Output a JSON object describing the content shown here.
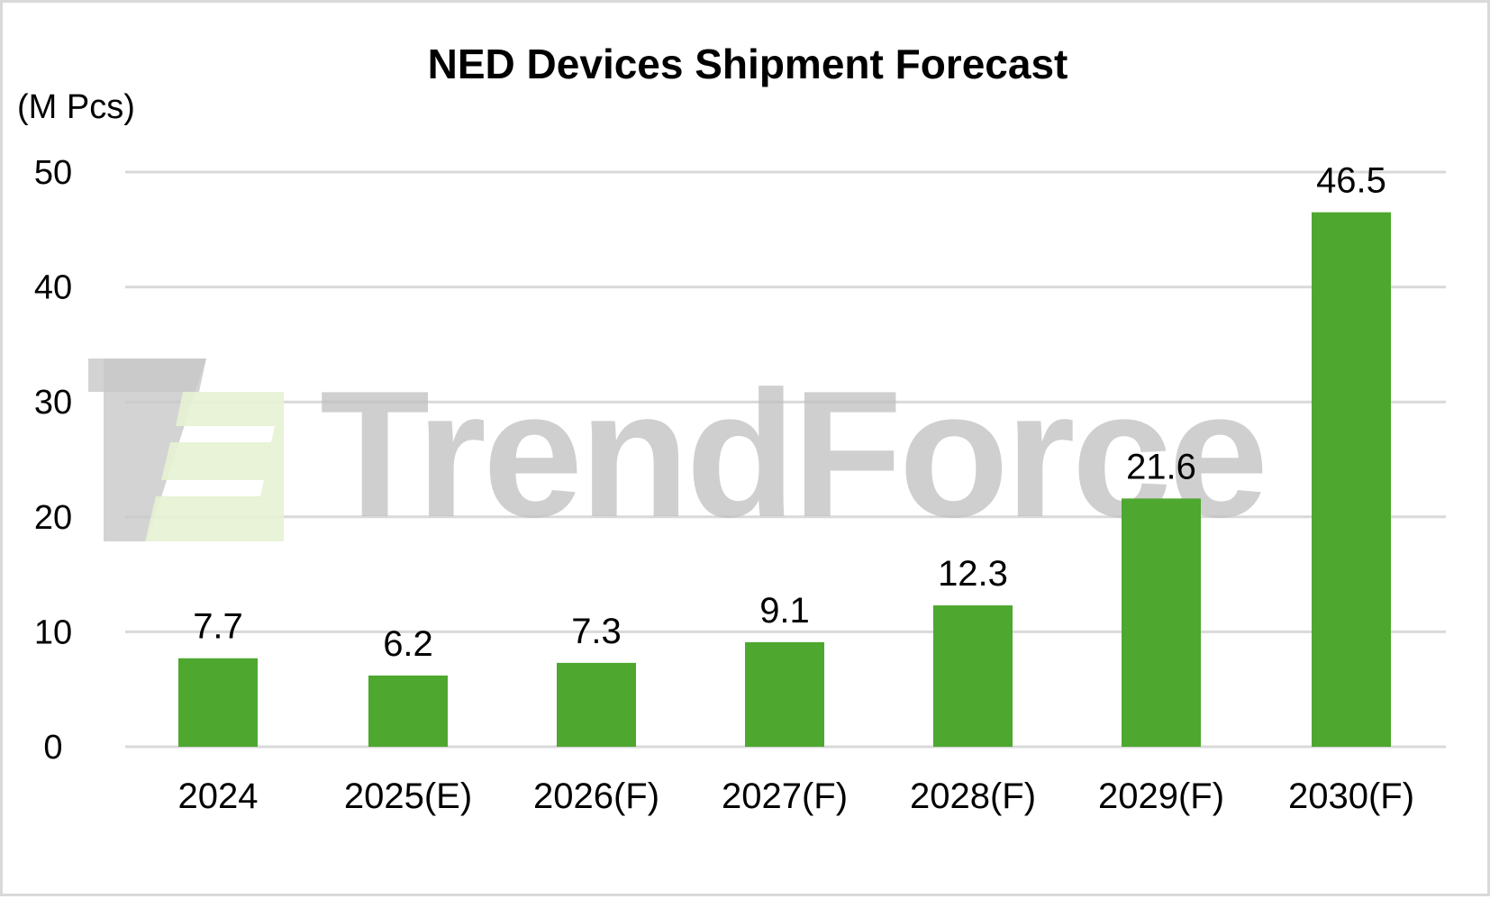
{
  "chart_data": {
    "type": "bar",
    "title": "NED Devices Shipment Forecast",
    "unit_label": "(M Pcs)",
    "xlabel": "",
    "ylabel": "",
    "categories": [
      "2024",
      "2025(E)",
      "2026(F)",
      "2027(F)",
      "2028(F)",
      "2029(F)",
      "2030(F)"
    ],
    "values": [
      7.7,
      6.2,
      7.3,
      9.1,
      12.3,
      21.6,
      46.5
    ],
    "value_labels": [
      "7.7",
      "6.2",
      "7.3",
      "9.1",
      "12.3",
      "21.6",
      "46.5"
    ],
    "ylim": [
      0,
      50
    ],
    "yticks": [
      0,
      10,
      20,
      30,
      40,
      50
    ],
    "ytick_labels": [
      "0",
      "10",
      "20",
      "30",
      "40",
      "50"
    ],
    "grid": true,
    "legend": "none",
    "bar_color": "#4ea72e",
    "grid_color": "#d9d9d9"
  },
  "watermark": {
    "text": "TrendForce",
    "logo_icon": "trendforce-logo-icon",
    "text_color": "#bdbdbd",
    "logo_grey_color": "#c8c8c8",
    "logo_green_color": "#e6f2d3"
  }
}
